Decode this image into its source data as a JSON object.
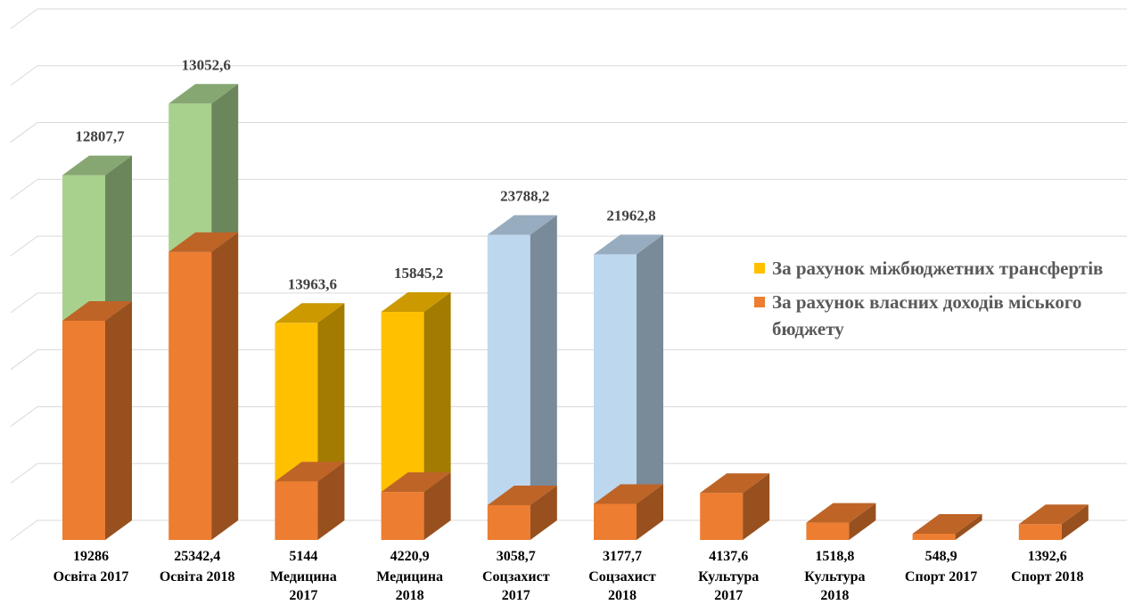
{
  "chart_data": {
    "type": "bar",
    "stacked": true,
    "three_d": true,
    "categories": [
      [
        "Освіта 2017"
      ],
      [
        "Освіта 2018"
      ],
      [
        "Медицина",
        "2017"
      ],
      [
        "Медицина",
        "2018"
      ],
      [
        "Соцзахист",
        "2017"
      ],
      [
        "Соцзахист",
        "2018"
      ],
      [
        "Культура",
        "2017"
      ],
      [
        "Культура",
        "2018"
      ],
      [
        "Спорт 2017"
      ],
      [
        "Спорт 2018"
      ]
    ],
    "series": [
      {
        "name": "За рахунок власних доходів міського бюджету",
        "color": "#ed7d31",
        "values": [
          19286,
          25342.4,
          5144,
          4220.9,
          3058.7,
          3177.7,
          4137.6,
          1518.8,
          548.9,
          1392.6
        ],
        "labels": [
          "19286",
          "25342,4",
          "5144",
          "4220,9",
          "3058,7",
          "3177,7",
          "4137,6",
          "1518,8",
          "548,9",
          "1392,6"
        ]
      },
      {
        "name": "За рахунок міжбюджетних трансфертів",
        "values": [
          12807.7,
          13052.6,
          13963.6,
          15845.2,
          23788.2,
          21962.8,
          null,
          null,
          null,
          null
        ],
        "labels": [
          "12807,7",
          "13052,6",
          "13963,6",
          "15845,2",
          "23788,2",
          "21962,8",
          "",
          "",
          "",
          ""
        ],
        "colors": [
          "#a9d18e",
          "#a9d18e",
          "#ffc000",
          "#ffc000",
          "#bdd7ee",
          "#bdd7ee"
        ]
      }
    ],
    "ylim": [
      0,
      45000
    ],
    "grid": true,
    "legend_position": "right",
    "legend": [
      {
        "text": "За рахунок міжбюджетних трансфертів",
        "color": "#ffc000"
      },
      {
        "text": "За рахунок власних доходів міського бюджету",
        "color": "#ed7d31"
      }
    ]
  }
}
